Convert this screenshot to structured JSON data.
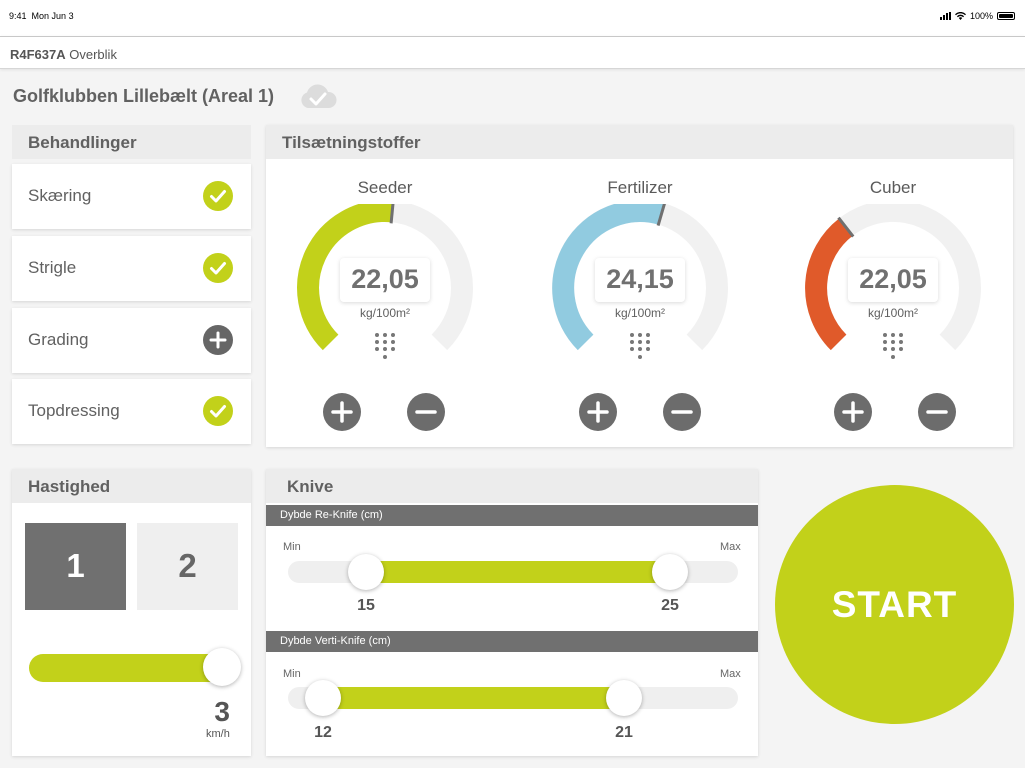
{
  "status": {
    "time": "9:41",
    "date": "Mon Jun 3",
    "battery": "100%"
  },
  "nav": {
    "id": "R4F637A",
    "title": "Overblik"
  },
  "area": {
    "title": "Golfklubben Lillebælt (Areal 1)"
  },
  "colors": {
    "accent": "#c2d11a",
    "seeder": "#91cbe0",
    "cuber": "#e05a2a",
    "dark": "#707070"
  },
  "treatments": {
    "title": "Behandlinger",
    "items": [
      {
        "label": "Skæring",
        "state": "checked",
        "icon": "check-icon"
      },
      {
        "label": "Strigle",
        "state": "checked",
        "icon": "check-icon"
      },
      {
        "label": "Grading",
        "state": "add",
        "icon": "plus-icon"
      },
      {
        "label": "Topdressing",
        "state": "checked",
        "icon": "check-icon"
      }
    ]
  },
  "additives": {
    "title": "Tilsætningstoffer",
    "gauges": [
      {
        "name": "Seeder",
        "value": "22,05",
        "unit": "kg/100m²",
        "fill_fraction": 0.52
      },
      {
        "name": "Fertilizer",
        "value": "24,15",
        "unit": "kg/100m²",
        "fill_fraction": 0.56
      },
      {
        "name": "Cuber",
        "value": "22,05",
        "unit": "kg/100m²",
        "fill_fraction": 0.36
      }
    ]
  },
  "speed": {
    "title": "Hastighed",
    "buttons": [
      "1",
      "2"
    ],
    "selected": "1",
    "value": "3",
    "unit": "km/h",
    "slider_fraction": 1.0
  },
  "knives": {
    "title": "Knive",
    "sliders": [
      {
        "label": "Dybde Re-Knife (cm)",
        "min_label": "Min",
        "max_label": "Max",
        "low": "15",
        "high": "25"
      },
      {
        "label": "Dybde Verti-Knife (cm)",
        "min_label": "Min",
        "max_label": "Max",
        "low": "12",
        "high": "21"
      }
    ]
  },
  "start": {
    "label": "START"
  }
}
